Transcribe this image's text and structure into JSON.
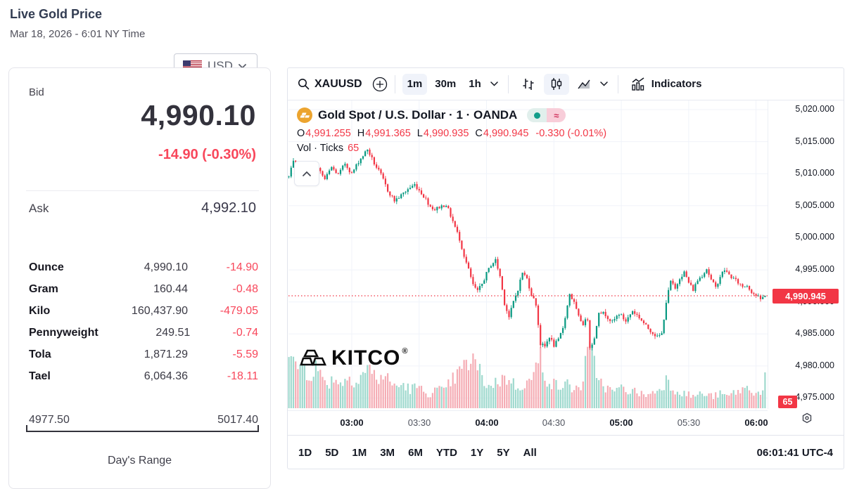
{
  "header": {
    "title": "Live Gold Price",
    "subtitle": "Mar 18, 2026 - 6:01 NY Time"
  },
  "currency_selector": {
    "label": "USD"
  },
  "quote_card": {
    "bid_label": "Bid",
    "bid_value": "4,990.10",
    "bid_change": "-14.90 (-0.30%)",
    "ask_label": "Ask",
    "ask_value": "4,992.10",
    "units": [
      {
        "label": "Ounce",
        "value": "4,990.10",
        "change": "-14.90"
      },
      {
        "label": "Gram",
        "value": "160.44",
        "change": "-0.48"
      },
      {
        "label": "Kilo",
        "value": "160,437.90",
        "change": "-479.05"
      },
      {
        "label": "Pennyweight",
        "value": "249.51",
        "change": "-0.74"
      },
      {
        "label": "Tola",
        "value": "1,871.29",
        "change": "-5.59"
      },
      {
        "label": "Tael",
        "value": "6,064.36",
        "change": "-18.11"
      }
    ],
    "range": {
      "low": "4977.50",
      "high": "5017.40",
      "caption": "Day's Range"
    }
  },
  "toolbar": {
    "symbol": "XAUUSD",
    "intervals": [
      "1m",
      "30m",
      "1h"
    ],
    "active_interval": "1m",
    "indicators_label": "Indicators"
  },
  "legend": {
    "instrument_title": "Gold Spot / U.S. Dollar · 1 · OANDA",
    "ohlc": [
      {
        "k": "O",
        "v": "4,991.255"
      },
      {
        "k": "H",
        "v": "4,991.365"
      },
      {
        "k": "L",
        "v": "4,990.935"
      },
      {
        "k": "C",
        "v": "4,990.945"
      }
    ],
    "change": "-0.330 (-0.01%)",
    "vol_label": "Vol · Ticks",
    "vol_value": "65"
  },
  "watermark": {
    "text": "KITCO",
    "reg": "®"
  },
  "footer": {
    "ranges": [
      "1D",
      "5D",
      "1M",
      "3M",
      "6M",
      "YTD",
      "1Y",
      "5Y",
      "All"
    ],
    "clock": "06:01:41 UTC-4"
  },
  "colors": {
    "up": "#089981",
    "down": "#f23645",
    "vol_up": "#9fd9ce",
    "vol_down": "#f5adb5",
    "grid": "#f0f3fa",
    "kitco_red": "#f8475b",
    "badge": "#f23645"
  },
  "chart_data": {
    "type": "candlestick",
    "symbol": "XAUUSD",
    "interval_minutes": 1,
    "title": "Gold Spot / U.S. Dollar · 1 · OANDA",
    "legend_ohlc": {
      "open": 4991.255,
      "high": 4991.365,
      "low": 4990.935,
      "close": 4990.945
    },
    "last_price": 4990.945,
    "last_price_label": "4,990.945",
    "last_volume_ticks": 65,
    "last_volume_label": "65",
    "total_minutes": 213,
    "y_ticks": [
      5020,
      5015,
      5010,
      5005,
      5000,
      4995,
      4990,
      4985,
      4980,
      4975
    ],
    "ylim": [
      4973,
      5021.5
    ],
    "x_ticks": [
      {
        "label": "03:00",
        "minute": 28,
        "major": true
      },
      {
        "label": "03:30",
        "minute": 58,
        "major": false
      },
      {
        "label": "04:00",
        "minute": 88,
        "major": true
      },
      {
        "label": "04:30",
        "minute": 118,
        "major": false
      },
      {
        "label": "05:00",
        "minute": 148,
        "major": true
      },
      {
        "label": "05:30",
        "minute": 178,
        "major": false
      },
      {
        "label": "06:00",
        "minute": 208,
        "major": true
      }
    ],
    "price_waypoints": [
      [
        0,
        5009.5
      ],
      [
        2,
        5011.8
      ],
      [
        4,
        5008.9
      ],
      [
        7,
        5010.7
      ],
      [
        10,
        5009.0
      ],
      [
        13,
        5010.8
      ],
      [
        16,
        5009.1
      ],
      [
        19,
        5011.0
      ],
      [
        22,
        5009.8
      ],
      [
        25,
        5011.6
      ],
      [
        28,
        5010.0
      ],
      [
        31,
        5011.9
      ],
      [
        35,
        5013.8
      ],
      [
        38,
        5011.6
      ],
      [
        41,
        5009.8
      ],
      [
        44,
        5007.4
      ],
      [
        47,
        5005.8
      ],
      [
        50,
        5006.6
      ],
      [
        53,
        5007.6
      ],
      [
        56,
        5008.3
      ],
      [
        59,
        5007.0
      ],
      [
        61,
        5006.0
      ],
      [
        63,
        5004.9
      ],
      [
        65,
        5004.4
      ],
      [
        67,
        5004.8
      ],
      [
        70,
        5005.2
      ],
      [
        73,
        5002.6
      ],
      [
        76,
        4999.8
      ],
      [
        78,
        4997.2
      ],
      [
        80,
        4995.0
      ],
      [
        82,
        4992.6
      ],
      [
        84,
        4991.6
      ],
      [
        86,
        4992.8
      ],
      [
        88,
        4994.4
      ],
      [
        90,
        4995.8
      ],
      [
        92,
        4996.5
      ],
      [
        94,
        4994.0
      ],
      [
        96,
        4989.8
      ],
      [
        98,
        4987.6
      ],
      [
        100,
        4990.0
      ],
      [
        102,
        4992.0
      ],
      [
        104,
        4994.6
      ],
      [
        106,
        4993.6
      ],
      [
        108,
        4991.2
      ],
      [
        110,
        4989.6
      ],
      [
        112,
        4983.4
      ],
      [
        114,
        4983.0
      ],
      [
        116,
        4984.6
      ],
      [
        118,
        4983.2
      ],
      [
        120,
        4984.0
      ],
      [
        122,
        4986.0
      ],
      [
        124,
        4989.4
      ],
      [
        125,
        4991.3
      ],
      [
        127,
        4989.8
      ],
      [
        129,
        4987.6
      ],
      [
        131,
        4986.6
      ],
      [
        133,
        4987.4
      ],
      [
        134,
        4983.0
      ],
      [
        136,
        4984.2
      ],
      [
        138,
        4988.6
      ],
      [
        141,
        4988.0
      ],
      [
        144,
        4986.8
      ],
      [
        147,
        4988.2
      ],
      [
        150,
        4987.0
      ],
      [
        153,
        4988.6
      ],
      [
        156,
        4987.6
      ],
      [
        159,
        4986.2
      ],
      [
        162,
        4985.2
      ],
      [
        164,
        4984.5
      ],
      [
        166,
        4985.0
      ],
      [
        168,
        4990.0
      ],
      [
        170,
        4993.2
      ],
      [
        172,
        4992.0
      ],
      [
        174,
        4993.8
      ],
      [
        176,
        4994.6
      ],
      [
        178,
        4993.0
      ],
      [
        180,
        4991.9
      ],
      [
        182,
        4993.4
      ],
      [
        184,
        4994.2
      ],
      [
        186,
        4995.2
      ],
      [
        188,
        4993.4
      ],
      [
        190,
        4992.2
      ],
      [
        192,
        4994.0
      ],
      [
        194,
        4995.0
      ],
      [
        196,
        4994.2
      ],
      [
        198,
        4993.6
      ],
      [
        200,
        4993.0
      ],
      [
        202,
        4992.4
      ],
      [
        204,
        4992.6
      ],
      [
        206,
        4991.6
      ],
      [
        208,
        4991.0
      ],
      [
        210,
        4990.4
      ],
      [
        212,
        4990.945
      ]
    ],
    "volume_waypoints": [
      [
        0,
        110
      ],
      [
        3,
        85
      ],
      [
        6,
        95
      ],
      [
        9,
        70
      ],
      [
        12,
        88
      ],
      [
        15,
        60
      ],
      [
        18,
        55
      ],
      [
        21,
        65
      ],
      [
        24,
        50
      ],
      [
        27,
        70
      ],
      [
        30,
        55
      ],
      [
        33,
        75
      ],
      [
        36,
        85
      ],
      [
        39,
        60
      ],
      [
        42,
        70
      ],
      [
        45,
        55
      ],
      [
        48,
        45
      ],
      [
        51,
        50
      ],
      [
        54,
        40
      ],
      [
        57,
        45
      ],
      [
        60,
        35
      ],
      [
        63,
        30
      ],
      [
        66,
        40
      ],
      [
        69,
        35
      ],
      [
        72,
        55
      ],
      [
        75,
        70
      ],
      [
        78,
        85
      ],
      [
        81,
        100
      ],
      [
        83,
        95
      ],
      [
        86,
        65
      ],
      [
        89,
        45
      ],
      [
        92,
        55
      ],
      [
        95,
        60
      ],
      [
        98,
        65
      ],
      [
        101,
        45
      ],
      [
        104,
        50
      ],
      [
        107,
        55
      ],
      [
        110,
        80
      ],
      [
        112,
        110
      ],
      [
        115,
        60
      ],
      [
        118,
        50
      ],
      [
        121,
        45
      ],
      [
        124,
        50
      ],
      [
        127,
        40
      ],
      [
        130,
        45
      ],
      [
        134,
        132
      ],
      [
        136,
        90
      ],
      [
        139,
        55
      ],
      [
        142,
        40
      ],
      [
        145,
        35
      ],
      [
        148,
        42
      ],
      [
        151,
        38
      ],
      [
        154,
        35
      ],
      [
        157,
        30
      ],
      [
        160,
        28
      ],
      [
        163,
        35
      ],
      [
        166,
        45
      ],
      [
        168,
        60
      ],
      [
        171,
        42
      ],
      [
        174,
        35
      ],
      [
        177,
        30
      ],
      [
        180,
        25
      ],
      [
        183,
        30
      ],
      [
        186,
        28
      ],
      [
        189,
        25
      ],
      [
        192,
        30
      ],
      [
        195,
        25
      ],
      [
        198,
        32
      ],
      [
        201,
        38
      ],
      [
        204,
        42
      ],
      [
        207,
        35
      ],
      [
        210,
        30
      ],
      [
        212,
        65
      ]
    ]
  }
}
